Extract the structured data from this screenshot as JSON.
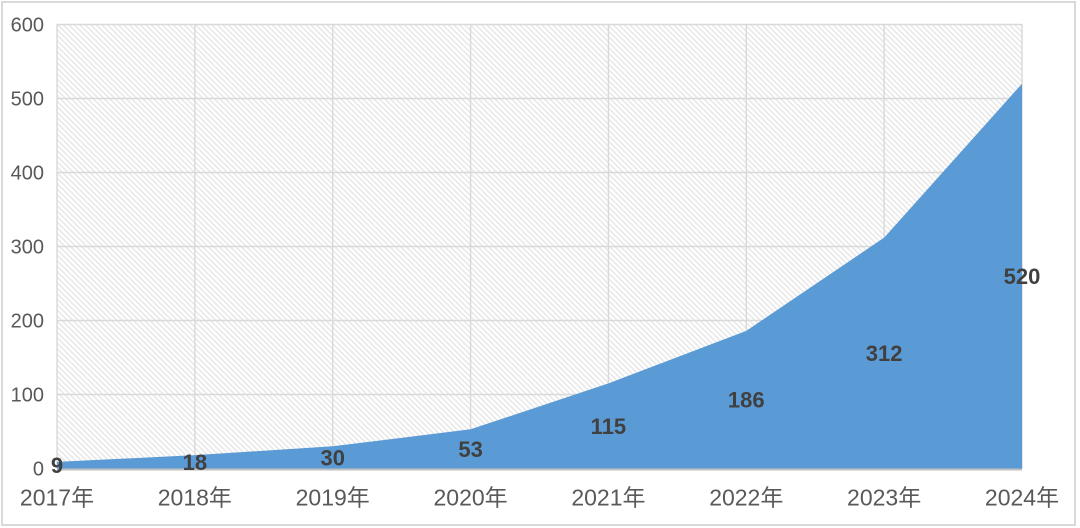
{
  "chart_data": {
    "type": "area",
    "categories": [
      "2017年",
      "2018年",
      "2019年",
      "2020年",
      "2021年",
      "2022年",
      "2023年",
      "2024年"
    ],
    "values": [
      9,
      18,
      30,
      53,
      115,
      186,
      312,
      520
    ],
    "data_labels": [
      "9",
      "18",
      "30",
      "53",
      "115",
      "186",
      "312",
      "520"
    ],
    "title": "",
    "xlabel": "",
    "ylabel": "",
    "ylim": [
      0,
      600
    ],
    "y_ticks": [
      0,
      100,
      200,
      300,
      400,
      500,
      600
    ],
    "y_tick_labels": [
      "0",
      "100",
      "200",
      "300",
      "400",
      "500",
      "600"
    ],
    "grid": "both",
    "legend": "none",
    "data_label_position": "centered-inside-area",
    "plot_background": "light-diagonal-hatch",
    "colors": {
      "area_fill": "#5b9bd5",
      "data_label_text": "#404040",
      "axis_text": "#595959",
      "gridline": "#d9d9d9",
      "axis_line": "#bfbfbf",
      "hatch_line": "#e9e9e9",
      "chart_border": "#d9d9d9",
      "background": "#ffffff"
    }
  }
}
